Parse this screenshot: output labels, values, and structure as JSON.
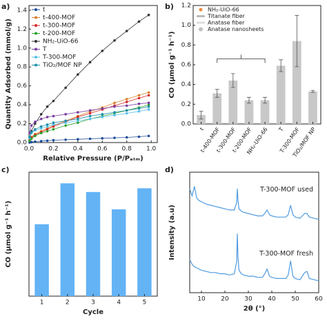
{
  "chart_data": [
    {
      "type": "line",
      "panel_label": "a)",
      "xlabel": "Relative Pressure (P/Pₐₜₘ)",
      "ylabel": "Quantity Adsorbed (mmol/g)",
      "markers": true,
      "xlim": [
        0,
        1.05
      ],
      "ylim": [
        0,
        1.45
      ],
      "xticks": [
        {
          "value": 0,
          "label": "0.0"
        },
        {
          "value": 0.2,
          "label": "0.2"
        },
        {
          "value": 0.4,
          "label": "0.4"
        },
        {
          "value": 0.6,
          "label": "0.6"
        },
        {
          "value": 0.8,
          "label": "0.8"
        },
        {
          "value": 1,
          "label": "1.0"
        }
      ],
      "yticks": [
        {
          "value": 0,
          "label": "0.0"
        },
        {
          "value": 0.2,
          "label": "0.2"
        },
        {
          "value": 0.4,
          "label": "0.4"
        },
        {
          "value": 0.6,
          "label": "0.6"
        },
        {
          "value": 0.8,
          "label": "0.8"
        },
        {
          "value": 1,
          "label": "1.0"
        },
        {
          "value": 1.2,
          "label": "1.2"
        },
        {
          "value": 1.4,
          "label": "1.4"
        }
      ],
      "x": [
        0.005,
        0.02,
        0.05,
        0.1,
        0.15,
        0.2,
        0.3,
        0.4,
        0.5,
        0.6,
        0.7,
        0.8,
        0.9,
        0.98
      ],
      "series": [
        {
          "name": "t",
          "color": "#1f4e9c",
          "values": [
            0,
            0.005,
            0.01,
            0.015,
            0.02,
            0.025,
            0.03,
            0.035,
            0.04,
            0.045,
            0.05,
            0.055,
            0.062,
            0.07
          ]
        },
        {
          "name": "t-400-MOF",
          "color": "#d9822b",
          "values": [
            0.03,
            0.06,
            0.09,
            0.12,
            0.15,
            0.18,
            0.23,
            0.28,
            0.33,
            0.37,
            0.42,
            0.46,
            0.5,
            0.53
          ]
        },
        {
          "name": "t-300-MOF",
          "color": "#d62728",
          "values": [
            0.02,
            0.05,
            0.08,
            0.11,
            0.14,
            0.17,
            0.22,
            0.27,
            0.31,
            0.35,
            0.39,
            0.43,
            0.47,
            0.5
          ]
        },
        {
          "name": "t-200-MOF",
          "color": "#2ca02c",
          "values": [
            0.02,
            0.04,
            0.07,
            0.1,
            0.12,
            0.14,
            0.18,
            0.21,
            0.25,
            0.28,
            0.31,
            0.34,
            0.37,
            0.4
          ]
        },
        {
          "name": "NH₂-UiO-66",
          "color": "#333333",
          "values": [
            0.05,
            0.12,
            0.2,
            0.3,
            0.38,
            0.44,
            0.58,
            0.72,
            0.85,
            0.97,
            1.08,
            1.18,
            1.28,
            1.35
          ]
        },
        {
          "name": "T",
          "color": "#7b3fa0",
          "values": [
            0.1,
            0.18,
            0.22,
            0.25,
            0.27,
            0.28,
            0.3,
            0.32,
            0.34,
            0.36,
            0.38,
            0.39,
            0.41,
            0.42
          ]
        },
        {
          "name": "T-300-MOF",
          "color": "#5bc0eb",
          "values": [
            0.05,
            0.1,
            0.13,
            0.15,
            0.17,
            0.19,
            0.21,
            0.23,
            0.25,
            0.27,
            0.29,
            0.31,
            0.33,
            0.35
          ]
        },
        {
          "name": "TiO₂/MOF NP",
          "color": "#1f8fa8",
          "values": [
            0.06,
            0.11,
            0.14,
            0.17,
            0.19,
            0.21,
            0.23,
            0.25,
            0.28,
            0.3,
            0.32,
            0.34,
            0.36,
            0.38
          ]
        }
      ]
    },
    {
      "type": "bar",
      "panel_label": "b)",
      "ylabel": "CO (μmol g⁻¹ h⁻¹)",
      "color": "#c8c8c8",
      "legend_items": [
        "NH₂-UiO-66",
        "Titanate fiber",
        "Anatase fiber",
        "Anatase nanosheets"
      ],
      "ylim": [
        0,
        1.2
      ],
      "yticks": [
        {
          "value": 0,
          "label": "0.0"
        },
        {
          "value": 0.2,
          "label": "0.2"
        },
        {
          "value": 0.4,
          "label": "0.4"
        },
        {
          "value": 0.6,
          "label": "0.6"
        },
        {
          "value": 0.8,
          "label": "0.8"
        },
        {
          "value": 1,
          "label": "1.0"
        },
        {
          "value": 1.2,
          "label": "1.2"
        }
      ],
      "categories": [
        "t",
        "t-400-MOF",
        "t-300-MOF",
        "t-200-MOF",
        "NH₂-UiO-66",
        "T",
        "T-300-MOF",
        "TiO₂/MOF NP"
      ],
      "values": [
        0.09,
        0.31,
        0.44,
        0.24,
        0.24,
        0.59,
        0.84,
        0.33
      ],
      "errors": [
        0.04,
        0.04,
        0.07,
        0.03,
        0.03,
        0.06,
        0.26,
        0.01
      ]
    },
    {
      "type": "bar",
      "panel_label": "c)",
      "ylabel": "CO (μmol g⁻¹ h⁻¹)",
      "xlabel": "Cycle",
      "color": "#63b3f5",
      "ylim": [
        0,
        1
      ],
      "categories": [
        "1",
        "2",
        "3",
        "4",
        "5"
      ],
      "values": [
        0.58,
        0.91,
        0.84,
        0.7,
        0.87
      ]
    },
    {
      "type": "line",
      "panel_label": "d)",
      "xlabel": "2θ (°)",
      "ylabel": "Intensity (a.u)",
      "markers": false,
      "xlim": [
        5,
        60
      ],
      "ylim": [
        0.5,
        5.6
      ],
      "xticks": [
        10,
        20,
        30,
        40,
        50,
        60
      ],
      "x": [
        5,
        6,
        7,
        8,
        9,
        10,
        12,
        14,
        16,
        18,
        20,
        22,
        24,
        25,
        25.3,
        25.6,
        26,
        27,
        28,
        30,
        32,
        34,
        36,
        37,
        38,
        39,
        40,
        42,
        44,
        46,
        47,
        48,
        49,
        50,
        52,
        53,
        54,
        55,
        56,
        58,
        60
      ],
      "series": [
        {
          "name": "T-300-MOF used",
          "color": "#4f9be0",
          "values": [
            4.9,
            4.6,
            5.0,
            4.5,
            4.4,
            4.35,
            4.25,
            4.2,
            4.15,
            4.1,
            4.05,
            4.0,
            4.0,
            4.3,
            4.9,
            4.4,
            4.05,
            3.95,
            3.9,
            3.85,
            3.8,
            3.75,
            3.75,
            3.85,
            4.0,
            3.8,
            3.75,
            3.7,
            3.7,
            3.7,
            3.8,
            4.2,
            3.8,
            3.7,
            3.65,
            3.75,
            3.85,
            3.85,
            3.7,
            3.65,
            3.6
          ]
        },
        {
          "name": "T-300-MOF fresh",
          "color": "#4f9be0",
          "values": [
            1.9,
            1.7,
            1.6,
            1.55,
            1.5,
            1.45,
            1.4,
            1.35,
            1.35,
            1.3,
            1.3,
            1.25,
            1.3,
            1.8,
            3.0,
            2.0,
            1.45,
            1.3,
            1.25,
            1.2,
            1.2,
            1.15,
            1.15,
            1.3,
            1.5,
            1.2,
            1.15,
            1.1,
            1.1,
            1.1,
            1.25,
            1.85,
            1.2,
            1.1,
            1.05,
            1.2,
            1.35,
            1.4,
            1.1,
            1.05,
            1.0
          ]
        }
      ]
    }
  ]
}
